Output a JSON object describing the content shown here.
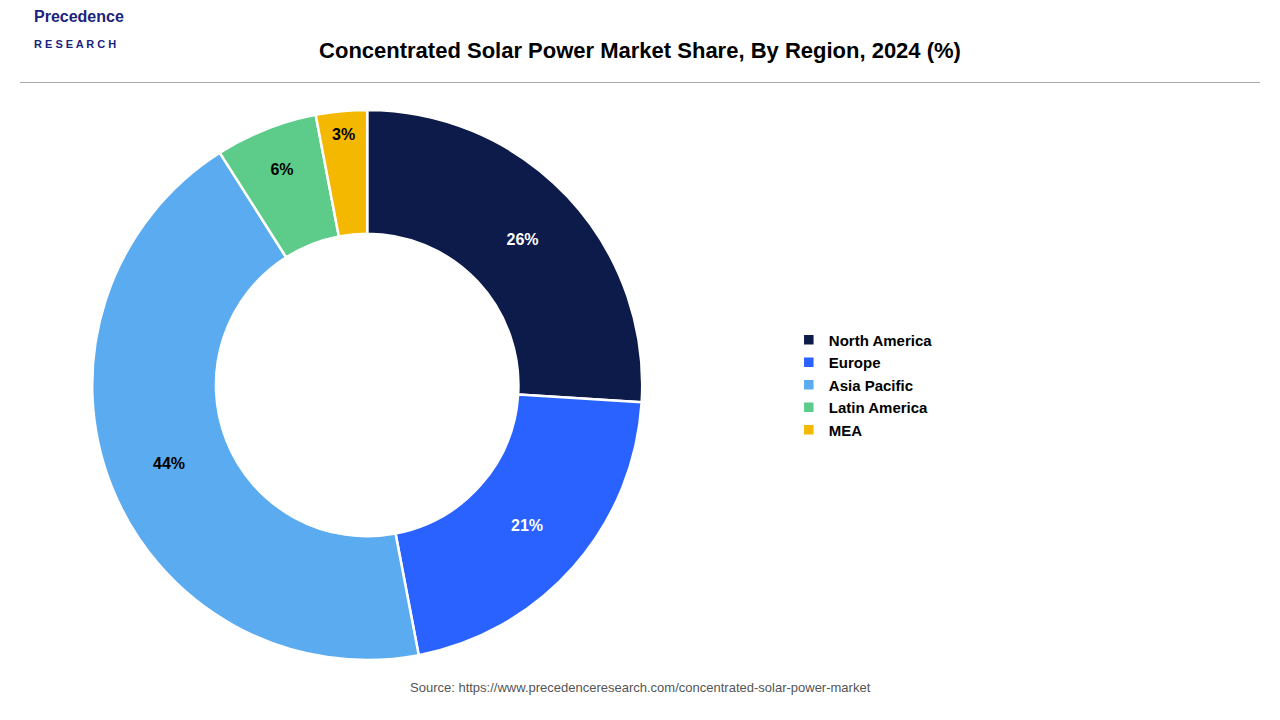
{
  "chart_data": {
    "type": "pie",
    "title": "Concentrated Solar Power Market Share, By Region, 2024 (%)",
    "categories": [
      "North America",
      "Europe",
      "Asia Pacific",
      "Latin America",
      "MEA"
    ],
    "values": [
      26,
      21,
      44,
      6,
      3
    ],
    "value_labels": [
      "26%",
      "21%",
      "44%",
      "6%",
      "3%"
    ],
    "colors": [
      "#0d1b4b",
      "#2962ff",
      "#5aabf0",
      "#5dcc8a",
      "#f5b800"
    ],
    "data_labels": true,
    "legend": "right",
    "annotations": [
      "Precedence",
      "R E S E A R C H",
      "Source: https://www.precedenceresearch.com/concentrated-solar-power-market"
    ]
  }
}
